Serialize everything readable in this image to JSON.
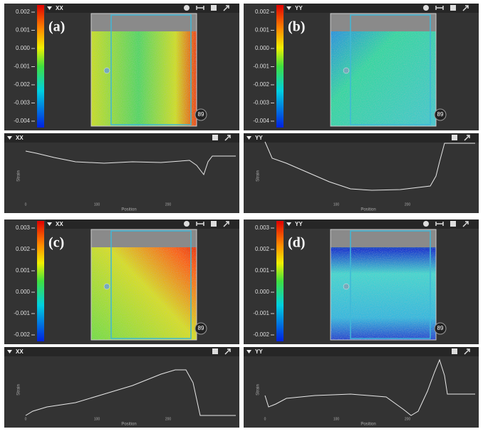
{
  "panels": [
    {
      "label": "(a)",
      "map": {
        "component": "XX",
        "colorbar_ticks": [
          "0.002",
          "0.001",
          "0.000",
          "-0.001",
          "-0.002",
          "-0.003",
          "-0.004"
        ],
        "badge": "89"
      },
      "profile": {
        "component": "XX",
        "y_label": "Strain",
        "x_label": "Position",
        "x_ticks": [
          "0",
          "100",
          "200"
        ]
      }
    },
    {
      "label": "(b)",
      "map": {
        "component": "YY",
        "colorbar_ticks": [
          "0.002",
          "0.001",
          "0.000",
          "-0.001",
          "-0.002",
          "-0.003",
          "-0.004"
        ],
        "badge": "89"
      },
      "profile": {
        "component": "YY",
        "y_label": "Strain",
        "x_label": "Position",
        "x_ticks": [
          "100",
          "200"
        ]
      }
    },
    {
      "label": "(c)",
      "map": {
        "component": "XX",
        "colorbar_ticks": [
          "0.003",
          "0.002",
          "0.001",
          "0.000",
          "-0.001",
          "-0.002"
        ],
        "badge": "89"
      },
      "profile": {
        "component": "XX",
        "y_label": "Strain",
        "x_label": "Position",
        "x_ticks": [
          "0",
          "100",
          "200"
        ]
      }
    },
    {
      "label": "(d)",
      "map": {
        "component": "YY",
        "colorbar_ticks": [
          "0.003",
          "0.002",
          "0.001",
          "0.000",
          "-0.001",
          "-0.002"
        ],
        "badge": "89"
      },
      "profile": {
        "component": "YY",
        "y_label": "Strain",
        "x_label": "Position",
        "x_ticks": [
          "0",
          "100",
          "200"
        ]
      }
    }
  ]
}
